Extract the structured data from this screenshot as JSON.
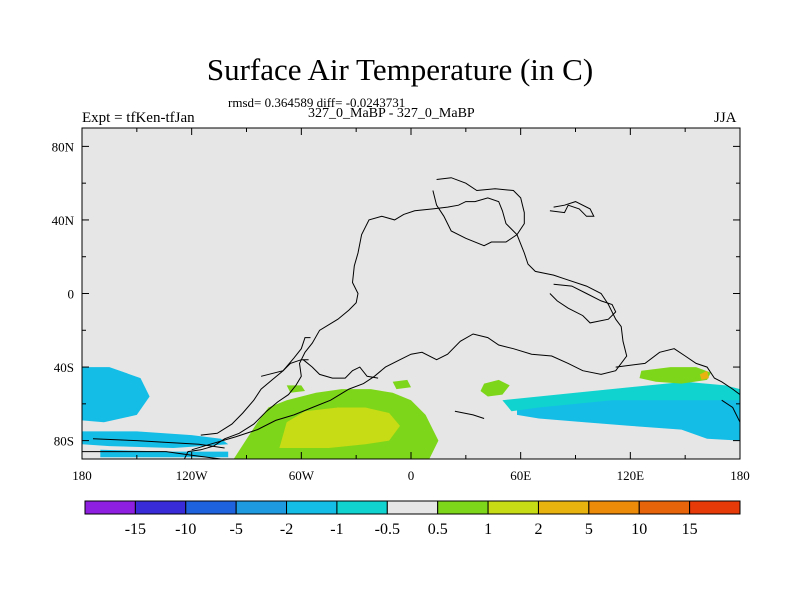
{
  "chart_data": {
    "type": "heatmap",
    "title": "Surface Air Temperature (in C)",
    "stats": "rmsd= 0.364589 diff= -0.0243731",
    "left_label": "Expt = tfKen-tfJan",
    "center_label": "327_0_MaBP - 327_0_MaBP",
    "right_label": "JJA",
    "xlim": [
      -180,
      180
    ],
    "ylim": [
      -90,
      90
    ],
    "x_ticks": [
      {
        "value": -180,
        "label": "180"
      },
      {
        "value": -120,
        "label": "120W"
      },
      {
        "value": -60,
        "label": "60W"
      },
      {
        "value": 0,
        "label": "0"
      },
      {
        "value": 60,
        "label": "60E"
      },
      {
        "value": 120,
        "label": "120E"
      },
      {
        "value": 180,
        "label": "180"
      }
    ],
    "y_ticks": [
      {
        "value": 80,
        "label": "80N"
      },
      {
        "value": 40,
        "label": "40N"
      },
      {
        "value": 0,
        "label": "0"
      },
      {
        "value": -40,
        "label": "40S"
      },
      {
        "value": -80,
        "label": "80S"
      }
    ],
    "colorbar": {
      "colors": [
        "#8f1fe0",
        "#3a2bd8",
        "#1f62dd",
        "#1d9ae0",
        "#14bde6",
        "#10d3cf",
        "#e6e6e6",
        "#7ed61a",
        "#c7dc14",
        "#e8b20f",
        "#ec8a0a",
        "#e8640a",
        "#e63a08"
      ],
      "labels": [
        "-15",
        "-10",
        "-5",
        "-2",
        "-1",
        "-0.5",
        "0.5",
        "1",
        "2",
        "5",
        "10",
        "15"
      ]
    },
    "regions": [
      {
        "level": "-2",
        "color": "#1d9ae0",
        "polygon": [
          [
            -180,
            -44
          ],
          [
            -168,
            -44
          ],
          [
            -155,
            -48
          ],
          [
            -152,
            -56
          ],
          [
            -158,
            -64
          ],
          [
            -172,
            -66
          ],
          [
            -180,
            -65
          ]
        ]
      },
      {
        "level": "-1",
        "color": "#14bde6",
        "polygon": [
          [
            -180,
            -40
          ],
          [
            -165,
            -40
          ],
          [
            -148,
            -46
          ],
          [
            -143,
            -56
          ],
          [
            -150,
            -66
          ],
          [
            -168,
            -70
          ],
          [
            -180,
            -69
          ]
        ]
      },
      {
        "level": "-1",
        "color": "#14bde6",
        "polygon": [
          [
            -180,
            -75
          ],
          [
            -150,
            -75
          ],
          [
            -120,
            -77
          ],
          [
            -104,
            -79
          ],
          [
            -100,
            -82
          ],
          [
            -130,
            -84
          ],
          [
            -165,
            -83
          ],
          [
            -180,
            -82
          ]
        ]
      },
      {
        "level": "-1",
        "color": "#14bde6",
        "polygon": [
          [
            -170,
            -85
          ],
          [
            -130,
            -86
          ],
          [
            -100,
            -86
          ],
          [
            -100,
            -89
          ],
          [
            -170,
            -89
          ]
        ]
      },
      {
        "level": "-1",
        "color": "#14bde6",
        "polygon": [
          [
            58,
            -60
          ],
          [
            80,
            -58
          ],
          [
            100,
            -54
          ],
          [
            140,
            -52
          ],
          [
            160,
            -55
          ],
          [
            180,
            -56
          ],
          [
            180,
            -80
          ],
          [
            162,
            -79
          ],
          [
            148,
            -74
          ],
          [
            120,
            -72
          ],
          [
            95,
            -70
          ],
          [
            70,
            -68
          ],
          [
            58,
            -66
          ]
        ]
      },
      {
        "level": "-0.5",
        "color": "#10d3cf",
        "polygon": [
          [
            50,
            -58
          ],
          [
            90,
            -54
          ],
          [
            130,
            -50
          ],
          [
            150,
            -48
          ],
          [
            172,
            -50
          ],
          [
            180,
            -52
          ],
          [
            180,
            -58
          ],
          [
            150,
            -58
          ],
          [
            110,
            -58
          ],
          [
            70,
            -62
          ],
          [
            55,
            -64
          ]
        ]
      },
      {
        "level": "1",
        "color": "#7ed61a",
        "polygon": [
          [
            -97,
            -90
          ],
          [
            -84,
            -70
          ],
          [
            -78,
            -62
          ],
          [
            -68,
            -58
          ],
          [
            -52,
            -54
          ],
          [
            -38,
            -52
          ],
          [
            -22,
            -52
          ],
          [
            -10,
            -54
          ],
          [
            0,
            -58
          ],
          [
            8,
            -66
          ],
          [
            12,
            -74
          ],
          [
            15,
            -80
          ],
          [
            10,
            -90
          ]
        ]
      },
      {
        "level": "1",
        "color": "#7ed61a",
        "polygon": [
          [
            -68,
            -50
          ],
          [
            -60,
            -50
          ],
          [
            -58,
            -53
          ],
          [
            -66,
            -54
          ]
        ]
      },
      {
        "level": "1",
        "color": "#7ed61a",
        "polygon": [
          [
            40,
            -49
          ],
          [
            48,
            -47
          ],
          [
            54,
            -50
          ],
          [
            50,
            -55
          ],
          [
            42,
            -56
          ],
          [
            38,
            -53
          ]
        ]
      },
      {
        "level": "1",
        "color": "#7ed61a",
        "polygon": [
          [
            126,
            -42
          ],
          [
            142,
            -40
          ],
          [
            156,
            -40
          ],
          [
            164,
            -43
          ],
          [
            162,
            -47
          ],
          [
            148,
            -49
          ],
          [
            134,
            -48
          ],
          [
            125,
            -46
          ]
        ]
      },
      {
        "level": "1",
        "color": "#7ed61a",
        "polygon": [
          [
            -10,
            -48
          ],
          [
            -2,
            -47
          ],
          [
            0,
            -51
          ],
          [
            -8,
            -52
          ]
        ]
      },
      {
        "level": "2",
        "color": "#c7dc14",
        "polygon": [
          [
            -72,
            -84
          ],
          [
            -68,
            -70
          ],
          [
            -58,
            -64
          ],
          [
            -40,
            -62
          ],
          [
            -25,
            -62
          ],
          [
            -12,
            -65
          ],
          [
            -6,
            -72
          ],
          [
            -12,
            -80
          ],
          [
            -25,
            -82
          ],
          [
            -45,
            -84
          ]
        ]
      },
      {
        "level": "5",
        "color": "#e8b20f",
        "polygon": [
          [
            158,
            -44
          ],
          [
            162,
            -42
          ],
          [
            163,
            -46
          ],
          [
            159,
            -47
          ]
        ]
      }
    ],
    "outlines": [
      [
        [
          -124,
          -90
        ],
        [
          -122,
          -86
        ],
        [
          -115,
          -85
        ],
        [
          -108,
          -83
        ],
        [
          -102,
          -79
        ],
        [
          -94,
          -76
        ],
        [
          -86,
          -71
        ],
        [
          -79,
          -64
        ],
        [
          -73,
          -59
        ],
        [
          -67,
          -55
        ],
        [
          -63,
          -50
        ],
        [
          -60,
          -45
        ],
        [
          -61,
          -38
        ],
        [
          -58,
          -32
        ],
        [
          -54,
          -27
        ],
        [
          -50,
          -20
        ],
        [
          -40,
          -14
        ],
        [
          -34,
          -9
        ],
        [
          -30,
          -5
        ],
        [
          -29,
          0
        ],
        [
          -32,
          6
        ],
        [
          -31,
          15
        ],
        [
          -29,
          22
        ],
        [
          -27,
          32
        ],
        [
          -23,
          40
        ],
        [
          -16,
          42
        ],
        [
          -9,
          40
        ],
        [
          -4,
          43
        ],
        [
          2,
          45
        ],
        [
          12,
          46
        ],
        [
          20,
          47
        ],
        [
          26,
          48
        ],
        [
          30,
          50
        ],
        [
          35,
          50
        ],
        [
          42,
          52
        ],
        [
          48,
          50
        ],
        [
          50,
          45
        ],
        [
          52,
          38
        ],
        [
          58,
          32
        ],
        [
          62,
          22
        ],
        [
          64,
          16
        ],
        [
          68,
          12
        ],
        [
          78,
          10
        ],
        [
          84,
          8
        ],
        [
          96,
          4
        ],
        [
          104,
          0
        ],
        [
          108,
          -6
        ],
        [
          112,
          -14
        ],
        [
          115,
          -18
        ],
        [
          116,
          -26
        ],
        [
          118,
          -34
        ],
        [
          112,
          -42
        ],
        [
          104,
          -44
        ],
        [
          94,
          -42
        ],
        [
          86,
          -38
        ],
        [
          77,
          -34
        ],
        [
          66,
          -33
        ],
        [
          56,
          -30
        ],
        [
          48,
          -28
        ],
        [
          42,
          -24
        ],
        [
          34,
          -22
        ],
        [
          27,
          -26
        ],
        [
          20,
          -33
        ],
        [
          14,
          -36
        ],
        [
          6,
          -32
        ],
        [
          0,
          -33
        ],
        [
          -6,
          -36
        ],
        [
          -14,
          -40
        ],
        [
          -20,
          -45
        ],
        [
          -26,
          -49
        ],
        [
          -34,
          -52
        ],
        [
          -44,
          -58
        ],
        [
          -54,
          -62
        ],
        [
          -64,
          -66
        ],
        [
          -74,
          -69
        ],
        [
          -84,
          -74
        ],
        [
          -96,
          -78
        ],
        [
          -110,
          -82
        ],
        [
          -120,
          -85
        ]
      ],
      [
        [
          -180,
          -86
        ],
        [
          -134,
          -86
        ],
        [
          -120,
          -88
        ],
        [
          -104,
          -90
        ]
      ],
      [
        [
          -174,
          -79
        ],
        [
          -150,
          -80
        ],
        [
          -134,
          -81
        ],
        [
          -116,
          -82
        ],
        [
          -102,
          -84
        ]
      ],
      [
        [
          -115,
          -77
        ],
        [
          -106,
          -76
        ],
        [
          -98,
          -71
        ],
        [
          -92,
          -65
        ],
        [
          -86,
          -58
        ],
        [
          -82,
          -52
        ],
        [
          -76,
          -47
        ],
        [
          -70,
          -42
        ],
        [
          -66,
          -38
        ],
        [
          -60,
          -36
        ],
        [
          -56,
          -36
        ]
      ],
      [
        [
          -59,
          -36
        ],
        [
          -54,
          -40
        ],
        [
          -50,
          -44
        ],
        [
          -43,
          -46
        ],
        [
          -36,
          -46
        ],
        [
          -32,
          -42
        ],
        [
          -28,
          -40
        ],
        [
          -24,
          -45
        ],
        [
          -18,
          -46
        ]
      ],
      [
        [
          -82,
          -45
        ],
        [
          -70,
          -42
        ],
        [
          -64,
          -35
        ],
        [
          -60,
          -30
        ],
        [
          -58,
          -24
        ],
        [
          -55,
          -24
        ]
      ],
      [
        [
          14,
          62
        ],
        [
          22,
          63
        ],
        [
          30,
          60
        ],
        [
          36,
          56
        ],
        [
          46,
          57
        ],
        [
          56,
          56
        ],
        [
          60,
          52
        ],
        [
          62,
          44
        ],
        [
          62,
          38
        ],
        [
          58,
          32
        ],
        [
          52,
          28
        ],
        [
          44,
          28
        ],
        [
          40,
          26
        ],
        [
          30,
          30
        ],
        [
          22,
          34
        ],
        [
          18,
          42
        ],
        [
          14,
          48
        ],
        [
          12,
          56
        ]
      ],
      [
        [
          76,
          45
        ],
        [
          84,
          44
        ],
        [
          86,
          48
        ],
        [
          92,
          46
        ],
        [
          96,
          42
        ],
        [
          100,
          42
        ],
        [
          98,
          46
        ],
        [
          90,
          50
        ],
        [
          84,
          48
        ],
        [
          78,
          47
        ]
      ],
      [
        [
          78,
          5
        ],
        [
          88,
          4
        ],
        [
          96,
          0
        ],
        [
          104,
          -4
        ],
        [
          110,
          -6
        ],
        [
          112,
          -10
        ],
        [
          108,
          -14
        ],
        [
          98,
          -16
        ],
        [
          94,
          -12
        ],
        [
          86,
          -8
        ],
        [
          80,
          -4
        ],
        [
          76,
          0
        ]
      ],
      [
        [
          112,
          -40
        ],
        [
          128,
          -38
        ],
        [
          136,
          -32
        ],
        [
          144,
          -30
        ],
        [
          150,
          -34
        ],
        [
          156,
          -38
        ],
        [
          162,
          -40
        ],
        [
          166,
          -46
        ],
        [
          170,
          -48
        ],
        [
          176,
          -52
        ],
        [
          180,
          -55
        ]
      ],
      [
        [
          170,
          -58
        ],
        [
          176,
          -62
        ],
        [
          180,
          -70
        ]
      ],
      [
        [
          24,
          -64
        ],
        [
          34,
          -66
        ],
        [
          40,
          -68
        ]
      ]
    ]
  }
}
